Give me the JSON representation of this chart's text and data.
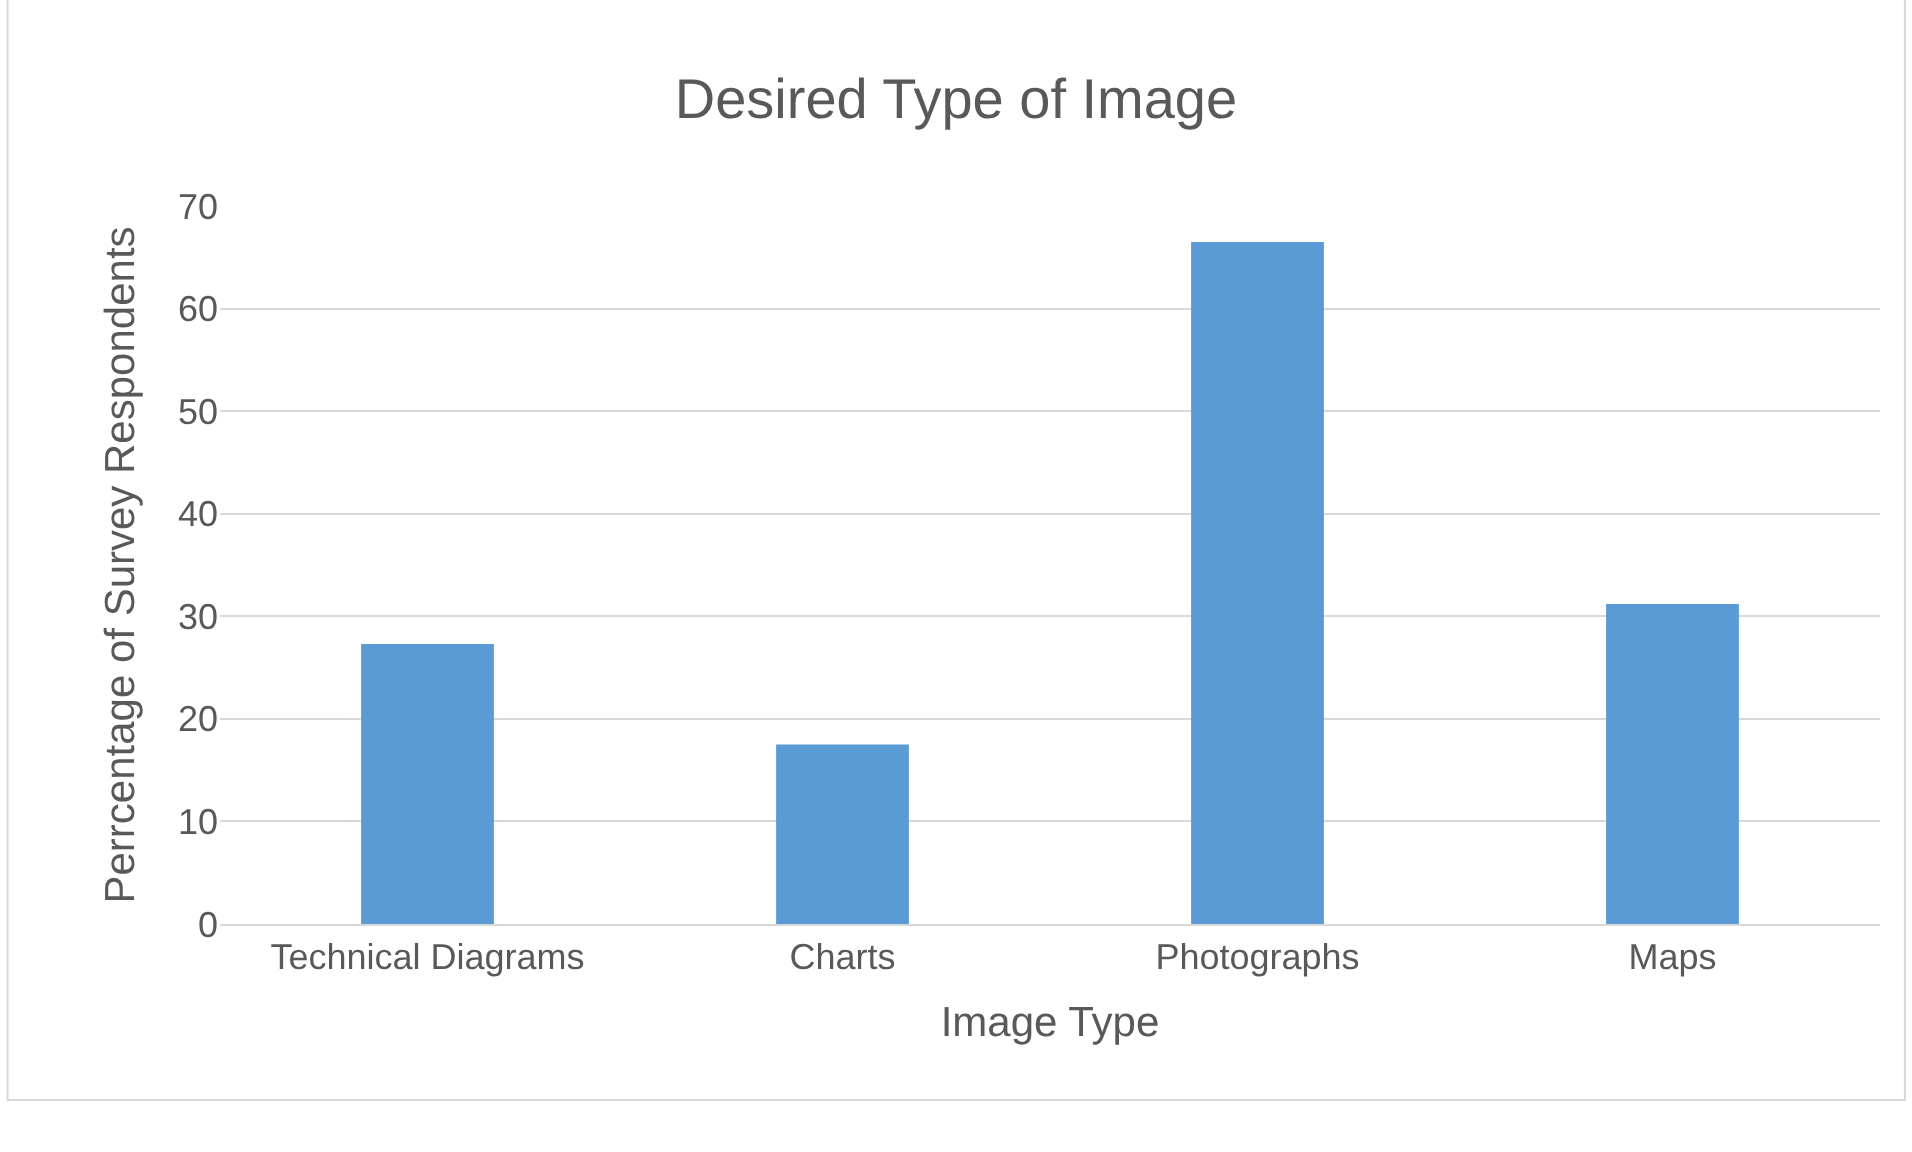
{
  "chart_data": {
    "type": "bar",
    "title": "Desired Type of Image",
    "xlabel": "Image Type",
    "ylabel": "Perrcentage of Survey Respondents",
    "categories": [
      "Technical Diagrams",
      "Charts",
      "Photographs",
      "Maps"
    ],
    "values": [
      27.3,
      17.5,
      66.5,
      31.2
    ],
    "color": "#5b9bd5",
    "ylim": [
      0,
      70
    ],
    "yticks": [
      0,
      10,
      20,
      30,
      40,
      50,
      60,
      70
    ],
    "grid": "y"
  }
}
